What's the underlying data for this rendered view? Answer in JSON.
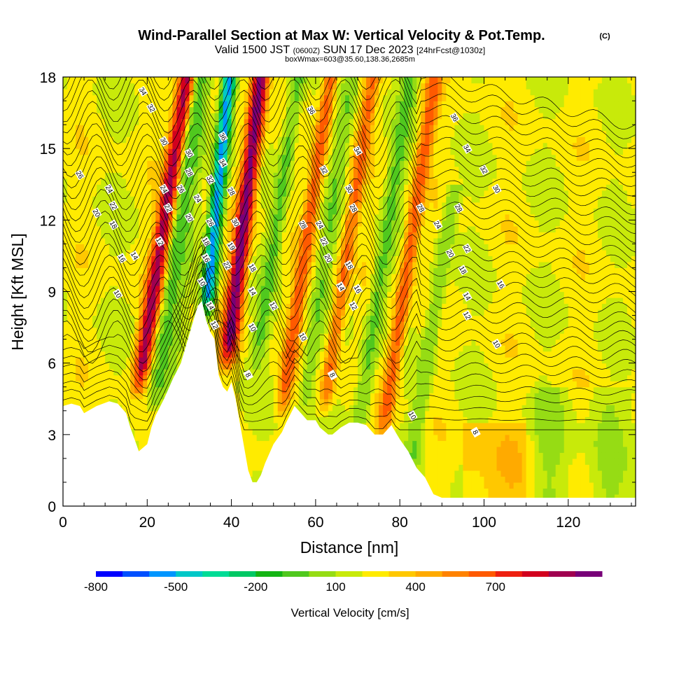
{
  "header": {
    "title": "Wind-Parallel Section at Max W: Vertical Velocity & Pot.Temp.",
    "title_mark": "(C)",
    "valid_a": "Valid 1500 JST",
    "valid_b": "(0600Z)",
    "valid_c": "SUN 17 Dec 2023",
    "valid_d": "[24hrFcst@1030z]",
    "boxinfo": "boxWmax=603@35.60,138.36,2685m"
  },
  "chart_data": {
    "type": "heatmap",
    "xlabel": "Distance [nm]",
    "ylabel": "Height [Kft MSL]",
    "xlim": [
      0,
      136
    ],
    "ylim": [
      0,
      18
    ],
    "x_ticks": [
      "0",
      "20",
      "40",
      "60",
      "80",
      "100",
      "120"
    ],
    "y_ticks": [
      "0",
      "3",
      "6",
      "9",
      "12",
      "15",
      "18"
    ],
    "colorbar": {
      "label": "Vertical Velocity [cm/s]",
      "tick_labels": [
        "-800",
        "-500",
        "-200",
        "100",
        "400",
        "700"
      ],
      "colors": [
        "#0000ff",
        "#0050ff",
        "#0096ff",
        "#00c8c8",
        "#00dc96",
        "#00c864",
        "#14b414",
        "#50c81e",
        "#96dc14",
        "#c8ea0a",
        "#ffeb00",
        "#ffc800",
        "#ffaa00",
        "#ff8200",
        "#ff5a00",
        "#ee2010",
        "#d2001e",
        "#a00050",
        "#780078"
      ]
    },
    "terrain_height_kft": [
      [
        0,
        4.2
      ],
      [
        2,
        4.3
      ],
      [
        4,
        4.2
      ],
      [
        5,
        3.9
      ],
      [
        8,
        4.2
      ],
      [
        11,
        4.4
      ],
      [
        13,
        4.3
      ],
      [
        15,
        3.9
      ],
      [
        16,
        3.3
      ],
      [
        17,
        2.8
      ],
      [
        18,
        2.3
      ],
      [
        20,
        2.6
      ],
      [
        21,
        3.3
      ],
      [
        22,
        3.8
      ],
      [
        24,
        4.5
      ],
      [
        26,
        5.3
      ],
      [
        28,
        6.0
      ],
      [
        30,
        7.2
      ],
      [
        32,
        8.4
      ],
      [
        33,
        8.6
      ],
      [
        34,
        7.8
      ],
      [
        35,
        7.3
      ],
      [
        36,
        7.0
      ],
      [
        37,
        5.5
      ],
      [
        38,
        5.0
      ],
      [
        39,
        4.8
      ],
      [
        40,
        5.2
      ],
      [
        41,
        4.5
      ],
      [
        42,
        3.5
      ],
      [
        43,
        2.5
      ],
      [
        44,
        1.5
      ],
      [
        45,
        1.0
      ],
      [
        46,
        1.0
      ],
      [
        47,
        1.3
      ],
      [
        48,
        1.8
      ],
      [
        50,
        2.6
      ],
      [
        52,
        3.1
      ],
      [
        53,
        3.5
      ],
      [
        55,
        4.2
      ],
      [
        56,
        4.0
      ],
      [
        58,
        3.6
      ],
      [
        60,
        3.6
      ],
      [
        61,
        3.3
      ],
      [
        63,
        3.0
      ],
      [
        64,
        3.0
      ],
      [
        66,
        3.3
      ],
      [
        68,
        3.5
      ],
      [
        70,
        3.5
      ],
      [
        72,
        3.4
      ],
      [
        74,
        3.0
      ],
      [
        76,
        3.0
      ],
      [
        78,
        3.4
      ],
      [
        80,
        2.8
      ],
      [
        82,
        2.3
      ],
      [
        84,
        1.6
      ],
      [
        86,
        1.2
      ],
      [
        88,
        0.5
      ],
      [
        90,
        0.35
      ],
      [
        120,
        0.35
      ],
      [
        136,
        0.35
      ]
    ],
    "velocity_features": [
      {
        "x": 18,
        "z0": 5,
        "z1": 18,
        "lean": 1.6,
        "w": 1.8,
        "v": 600
      },
      {
        "x": 22,
        "z0": 4,
        "z1": 18,
        "lean": 1.4,
        "w": 2.5,
        "v": -200
      },
      {
        "x": 34,
        "z0": 8,
        "z1": 18,
        "lean": 1.0,
        "w": 1.5,
        "v": -750
      },
      {
        "x": 39,
        "z0": 6,
        "z1": 18,
        "lean": 1.2,
        "w": 1.8,
        "v": 700
      },
      {
        "x": 46,
        "z0": 6,
        "z1": 18,
        "lean": 1.5,
        "w": 1.6,
        "v": -200
      },
      {
        "x": 52,
        "z0": 4,
        "z1": 18,
        "lean": 1.5,
        "w": 1.5,
        "v": 300
      },
      {
        "x": 57,
        "z0": 4,
        "z1": 18,
        "lean": 1.5,
        "w": 1.5,
        "v": -150
      },
      {
        "x": 62,
        "z0": 4,
        "z1": 18,
        "lean": 1.5,
        "w": 1.5,
        "v": 250
      },
      {
        "x": 70,
        "z0": 3,
        "z1": 18,
        "lean": 1.5,
        "w": 1.7,
        "v": -200
      },
      {
        "x": 76,
        "z0": 3,
        "z1": 18,
        "lean": 1.5,
        "w": 1.6,
        "v": 300
      },
      {
        "x": 82,
        "z0": 1,
        "z1": 13,
        "lean": 1.6,
        "w": 1.7,
        "v": -150
      }
    ],
    "theta_contour_labels": [
      {
        "text": "34",
        "x": 19,
        "y": 17.4
      },
      {
        "text": "32",
        "x": 21,
        "y": 16.7
      },
      {
        "text": "30",
        "x": 24,
        "y": 15.3
      },
      {
        "text": "26",
        "x": 4,
        "y": 13.9
      },
      {
        "text": "24",
        "x": 11,
        "y": 13.3
      },
      {
        "text": "22",
        "x": 12,
        "y": 12.6
      },
      {
        "text": "20",
        "x": 8,
        "y": 12.3
      },
      {
        "text": "18",
        "x": 12,
        "y": 11.8
      },
      {
        "text": "14",
        "x": 17,
        "y": 10.5
      },
      {
        "text": "16",
        "x": 14,
        "y": 10.4
      },
      {
        "text": "10",
        "x": 13,
        "y": 8.9
      },
      {
        "text": "24",
        "x": 24,
        "y": 13.3
      },
      {
        "text": "22",
        "x": 25,
        "y": 12.5
      },
      {
        "text": "12",
        "x": 23,
        "y": 11.1
      },
      {
        "text": "30",
        "x": 30,
        "y": 14.8
      },
      {
        "text": "28",
        "x": 30,
        "y": 14.0
      },
      {
        "text": "26",
        "x": 28,
        "y": 13.3
      },
      {
        "text": "24",
        "x": 32,
        "y": 12.9
      },
      {
        "text": "20",
        "x": 30,
        "y": 12.1
      },
      {
        "text": "36",
        "x": 38,
        "y": 15.5
      },
      {
        "text": "34",
        "x": 38,
        "y": 14.4
      },
      {
        "text": "32",
        "x": 35,
        "y": 13.7
      },
      {
        "text": "28",
        "x": 40,
        "y": 13.2
      },
      {
        "text": "26",
        "x": 35,
        "y": 11.9
      },
      {
        "text": "30",
        "x": 41,
        "y": 11.9
      },
      {
        "text": "18",
        "x": 34,
        "y": 11.1
      },
      {
        "text": "19",
        "x": 40,
        "y": 10.9
      },
      {
        "text": "16",
        "x": 34,
        "y": 10.4
      },
      {
        "text": "22",
        "x": 39,
        "y": 10.1
      },
      {
        "text": "10",
        "x": 33,
        "y": 9.4
      },
      {
        "text": "14",
        "x": 35,
        "y": 8.4
      },
      {
        "text": "12",
        "x": 36,
        "y": 7.6
      },
      {
        "text": "18",
        "x": 45,
        "y": 10.0
      },
      {
        "text": "14",
        "x": 45,
        "y": 9.0
      },
      {
        "text": "12",
        "x": 50,
        "y": 8.4
      },
      {
        "text": "10",
        "x": 45,
        "y": 7.5
      },
      {
        "text": "10",
        "x": 57,
        "y": 7.1
      },
      {
        "text": "8",
        "x": 44,
        "y": 5.5
      },
      {
        "text": "36",
        "x": 59,
        "y": 16.6
      },
      {
        "text": "34",
        "x": 70,
        "y": 14.9
      },
      {
        "text": "32",
        "x": 62,
        "y": 14.1
      },
      {
        "text": "30",
        "x": 68,
        "y": 13.3
      },
      {
        "text": "28",
        "x": 69,
        "y": 12.5
      },
      {
        "text": "28",
        "x": 57,
        "y": 11.8
      },
      {
        "text": "24",
        "x": 61,
        "y": 11.8
      },
      {
        "text": "22",
        "x": 62,
        "y": 11.1
      },
      {
        "text": "20",
        "x": 63,
        "y": 10.4
      },
      {
        "text": "18",
        "x": 68,
        "y": 10.1
      },
      {
        "text": "14",
        "x": 66,
        "y": 9.2
      },
      {
        "text": "16",
        "x": 70,
        "y": 9.1
      },
      {
        "text": "12",
        "x": 69,
        "y": 8.4
      },
      {
        "text": "8",
        "x": 64,
        "y": 5.5
      },
      {
        "text": "10",
        "x": 83,
        "y": 3.8
      },
      {
        "text": "36",
        "x": 93,
        "y": 16.3
      },
      {
        "text": "34",
        "x": 96,
        "y": 15.0
      },
      {
        "text": "32",
        "x": 100,
        "y": 14.1
      },
      {
        "text": "30",
        "x": 103,
        "y": 13.3
      },
      {
        "text": "28",
        "x": 85,
        "y": 12.5
      },
      {
        "text": "28",
        "x": 94,
        "y": 12.5
      },
      {
        "text": "24",
        "x": 89,
        "y": 11.8
      },
      {
        "text": "22",
        "x": 96,
        "y": 10.8
      },
      {
        "text": "20",
        "x": 92,
        "y": 10.6
      },
      {
        "text": "18",
        "x": 95,
        "y": 9.9
      },
      {
        "text": "16",
        "x": 104,
        "y": 9.3
      },
      {
        "text": "14",
        "x": 96,
        "y": 8.8
      },
      {
        "text": "12",
        "x": 96,
        "y": 8.0
      },
      {
        "text": "10",
        "x": 103,
        "y": 6.8
      },
      {
        "text": "8",
        "x": 98,
        "y": 3.1
      }
    ]
  }
}
